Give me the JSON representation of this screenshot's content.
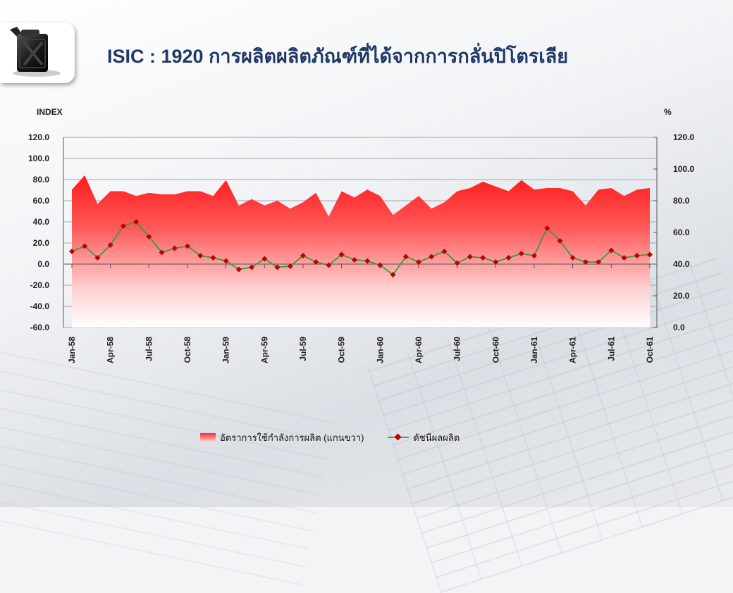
{
  "title": "ISIC : 1920 การผลิตผลิตภัณฑ์ที่ได้จากการกลั่นปิโตรเลีย",
  "logo_icon": "fuel-jerrycan-icon",
  "colors": {
    "area_top": "#ff1f1f",
    "area_bottom": "#ffffff",
    "line": "#2e9e3e",
    "marker": "#c00000",
    "title": "#1f3864"
  },
  "chart_data": {
    "type": "area+line",
    "left_axis_label": "INDEX",
    "right_axis_label": "%",
    "ylim_left": [
      -60,
      120
    ],
    "ylim_right": [
      0,
      120
    ],
    "left_ticks": [
      "120.0",
      "100.0",
      "80.0",
      "60.0",
      "40.0",
      "20.0",
      "0.0",
      "-20.0",
      "-40.0",
      "-60.0"
    ],
    "right_ticks": [
      "120.0",
      "100.0",
      "80.0",
      "60.0",
      "40.0",
      "20.0",
      "0.0"
    ],
    "x_tick_labels": [
      "Jan-58",
      "Apr-58",
      "Jul-58",
      "Oct-58",
      "Jan-59",
      "Apr-59",
      "Jul-59",
      "Oct-59",
      "Jan-60",
      "Apr-60",
      "Jul-60",
      "Oct-60",
      "Jan-61",
      "Apr-61",
      "Jul-61",
      "Oct-61"
    ],
    "series": [
      {
        "name": "อัตราการใช้กำลังการผลิต (แกนขวา)",
        "type": "area",
        "axis": "right",
        "values": [
          87,
          96,
          78,
          86,
          86,
          83,
          85,
          84,
          84,
          86,
          86,
          83,
          93,
          77,
          81,
          77,
          80,
          75,
          79,
          85,
          70,
          86,
          82,
          87,
          83,
          71,
          77,
          83,
          75,
          79,
          86,
          88,
          92,
          89,
          86,
          93,
          87,
          88,
          88,
          86,
          77,
          87,
          88,
          83,
          87,
          88
        ]
      },
      {
        "name": "ดัชนีผลผลิต",
        "type": "line",
        "axis": "left",
        "values": [
          12,
          17,
          6,
          18,
          36,
          40,
          26,
          11,
          15,
          17,
          8,
          6,
          3,
          -5,
          -3,
          5,
          -3,
          -2,
          8,
          2,
          -1,
          9,
          4,
          3,
          -1,
          -10,
          7,
          2,
          7,
          12,
          1,
          7,
          6,
          2,
          6,
          10,
          8,
          34,
          22,
          6,
          2,
          2,
          13,
          6,
          8,
          9
        ]
      }
    ],
    "grid": true,
    "legend_position": "bottom"
  }
}
